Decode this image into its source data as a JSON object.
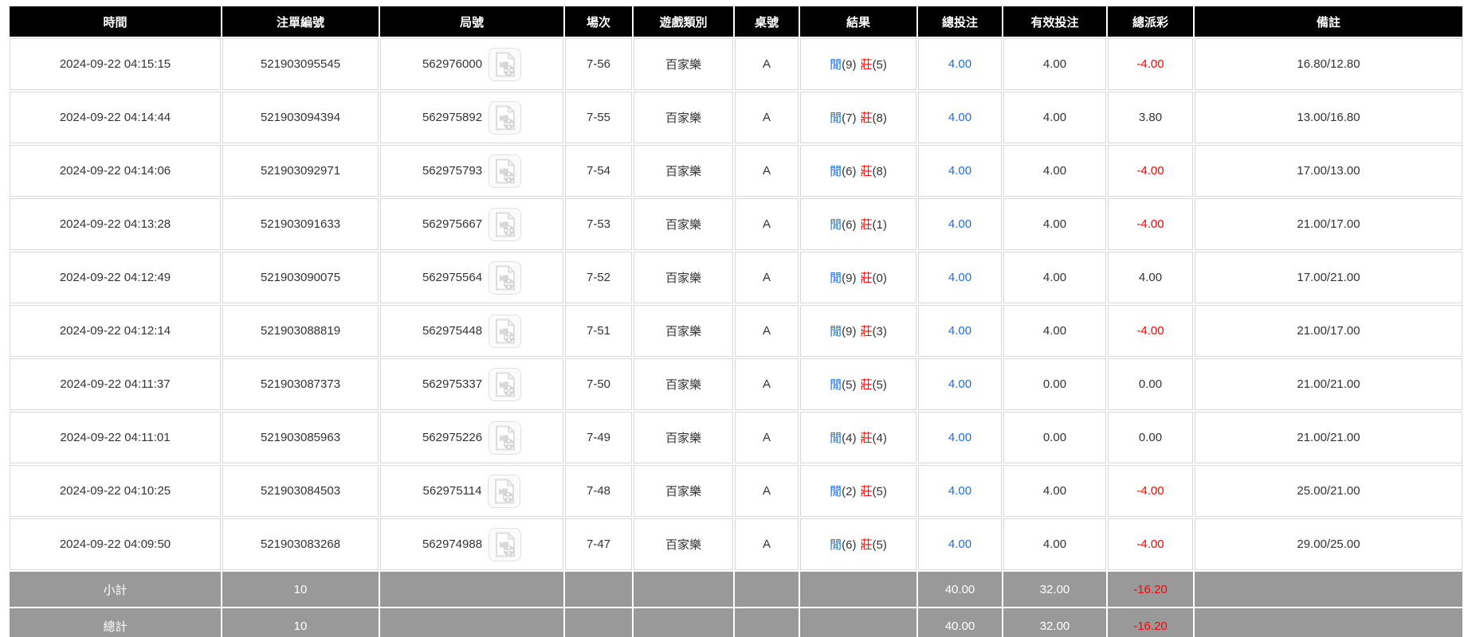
{
  "colors": {
    "header_bg": "#000000",
    "footer_bg": "#999999",
    "link_blue": "#1e6fe0",
    "negative_red": "#ff0000",
    "row_text": "#333333"
  },
  "table": {
    "columns": [
      {
        "key": "time",
        "label": "時間"
      },
      {
        "key": "bet_id",
        "label": "注單編號"
      },
      {
        "key": "round_id",
        "label": "局號"
      },
      {
        "key": "session",
        "label": "場次"
      },
      {
        "key": "game_type",
        "label": "遊戲類別"
      },
      {
        "key": "table_no",
        "label": "桌號"
      },
      {
        "key": "result",
        "label": "結果"
      },
      {
        "key": "total_bet",
        "label": "總投注"
      },
      {
        "key": "valid_bet",
        "label": "有效投注"
      },
      {
        "key": "total_payout",
        "label": "總派彩"
      },
      {
        "key": "remark",
        "label": "備註"
      }
    ],
    "result_labels": {
      "player": "閒",
      "banker": "莊"
    },
    "video_icon": "video-replay-icon",
    "rows": [
      {
        "time": "2024-09-22 04:15:15",
        "bet_id": "521903095545",
        "round_id": "562976000",
        "session": "7-56",
        "game_type": "百家樂",
        "table_no": "A",
        "result": {
          "player": "9",
          "banker": "5"
        },
        "total_bet": "4.00",
        "valid_bet": "4.00",
        "total_payout": "-4.00",
        "remark": "16.80/12.80"
      },
      {
        "time": "2024-09-22 04:14:44",
        "bet_id": "521903094394",
        "round_id": "562975892",
        "session": "7-55",
        "game_type": "百家樂",
        "table_no": "A",
        "result": {
          "player": "7",
          "banker": "8"
        },
        "total_bet": "4.00",
        "valid_bet": "4.00",
        "total_payout": "3.80",
        "remark": "13.00/16.80"
      },
      {
        "time": "2024-09-22 04:14:06",
        "bet_id": "521903092971",
        "round_id": "562975793",
        "session": "7-54",
        "game_type": "百家樂",
        "table_no": "A",
        "result": {
          "player": "6",
          "banker": "8"
        },
        "total_bet": "4.00",
        "valid_bet": "4.00",
        "total_payout": "-4.00",
        "remark": "17.00/13.00"
      },
      {
        "time": "2024-09-22 04:13:28",
        "bet_id": "521903091633",
        "round_id": "562975667",
        "session": "7-53",
        "game_type": "百家樂",
        "table_no": "A",
        "result": {
          "player": "6",
          "banker": "1"
        },
        "total_bet": "4.00",
        "valid_bet": "4.00",
        "total_payout": "-4.00",
        "remark": "21.00/17.00"
      },
      {
        "time": "2024-09-22 04:12:49",
        "bet_id": "521903090075",
        "round_id": "562975564",
        "session": "7-52",
        "game_type": "百家樂",
        "table_no": "A",
        "result": {
          "player": "9",
          "banker": "0"
        },
        "total_bet": "4.00",
        "valid_bet": "4.00",
        "total_payout": "4.00",
        "remark": "17.00/21.00"
      },
      {
        "time": "2024-09-22 04:12:14",
        "bet_id": "521903088819",
        "round_id": "562975448",
        "session": "7-51",
        "game_type": "百家樂",
        "table_no": "A",
        "result": {
          "player": "9",
          "banker": "3"
        },
        "total_bet": "4.00",
        "valid_bet": "4.00",
        "total_payout": "-4.00",
        "remark": "21.00/17.00"
      },
      {
        "time": "2024-09-22 04:11:37",
        "bet_id": "521903087373",
        "round_id": "562975337",
        "session": "7-50",
        "game_type": "百家樂",
        "table_no": "A",
        "result": {
          "player": "5",
          "banker": "5"
        },
        "total_bet": "4.00",
        "valid_bet": "0.00",
        "total_payout": "0.00",
        "remark": "21.00/21.00"
      },
      {
        "time": "2024-09-22 04:11:01",
        "bet_id": "521903085963",
        "round_id": "562975226",
        "session": "7-49",
        "game_type": "百家樂",
        "table_no": "A",
        "result": {
          "player": "4",
          "banker": "4"
        },
        "total_bet": "4.00",
        "valid_bet": "0.00",
        "total_payout": "0.00",
        "remark": "21.00/21.00"
      },
      {
        "time": "2024-09-22 04:10:25",
        "bet_id": "521903084503",
        "round_id": "562975114",
        "session": "7-48",
        "game_type": "百家樂",
        "table_no": "A",
        "result": {
          "player": "2",
          "banker": "5"
        },
        "total_bet": "4.00",
        "valid_bet": "4.00",
        "total_payout": "-4.00",
        "remark": "25.00/21.00"
      },
      {
        "time": "2024-09-22 04:09:50",
        "bet_id": "521903083268",
        "round_id": "562974988",
        "session": "7-47",
        "game_type": "百家樂",
        "table_no": "A",
        "result": {
          "player": "6",
          "banker": "5"
        },
        "total_bet": "4.00",
        "valid_bet": "4.00",
        "total_payout": "-4.00",
        "remark": "29.00/25.00"
      }
    ],
    "footer": [
      {
        "label": "小計",
        "count": "10",
        "total_bet": "40.00",
        "valid_bet": "32.00",
        "total_payout": "-16.20"
      },
      {
        "label": "總計",
        "count": "10",
        "total_bet": "40.00",
        "valid_bet": "32.00",
        "total_payout": "-16.20"
      }
    ]
  }
}
